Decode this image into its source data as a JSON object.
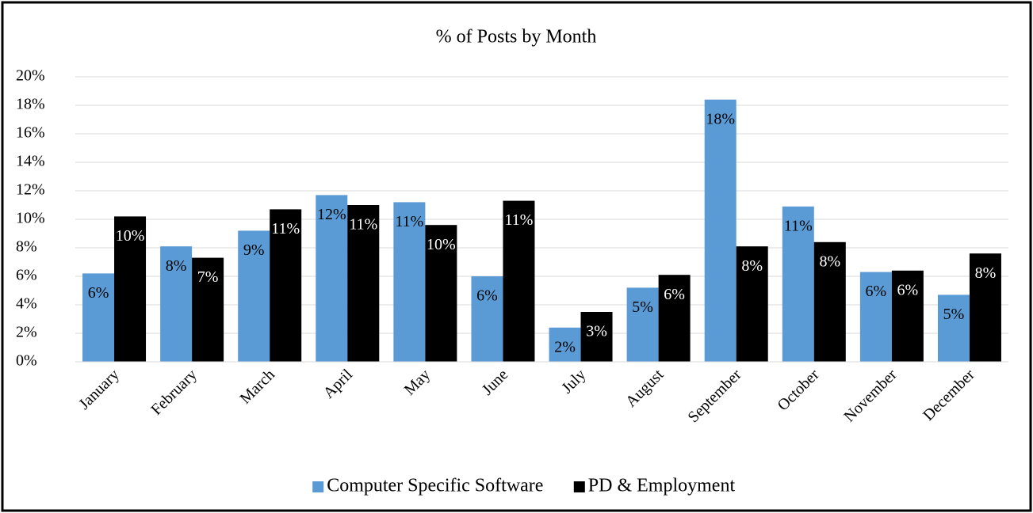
{
  "chart_data": {
    "type": "bar",
    "title": "% of Posts by Month",
    "categories": [
      "January",
      "February",
      "March",
      "April",
      "May",
      "June",
      "July",
      "August",
      "September",
      "October",
      "November",
      "December"
    ],
    "series": [
      {
        "name": "Computer Specific Software",
        "color": "#5b9bd5",
        "values": [
          6.2,
          8.1,
          9.2,
          11.7,
          11.2,
          6.0,
          2.4,
          5.2,
          18.4,
          10.9,
          6.3,
          4.7
        ],
        "value_labels": [
          "6%",
          "8%",
          "9%",
          "12%",
          "11%",
          "6%",
          "2%",
          "5%",
          "18%",
          "11%",
          "6%",
          "5%"
        ]
      },
      {
        "name": "PD & Employment",
        "color": "#000000",
        "values": [
          10.2,
          7.3,
          10.7,
          11.0,
          9.6,
          11.3,
          3.5,
          6.1,
          8.1,
          8.4,
          6.4,
          7.6
        ],
        "value_labels": [
          "10%",
          "7%",
          "11%",
          "11%",
          "10%",
          "11%",
          "3%",
          "6%",
          "8%",
          "8%",
          "6%",
          "8%"
        ]
      }
    ],
    "ylim": [
      0,
      20
    ],
    "yticks": [
      {
        "value": 0,
        "label": "0%"
      },
      {
        "value": 2,
        "label": "2%"
      },
      {
        "value": 4,
        "label": "4%"
      },
      {
        "value": 6,
        "label": "6%"
      },
      {
        "value": 8,
        "label": "8%"
      },
      {
        "value": 10,
        "label": "10%"
      },
      {
        "value": 12,
        "label": "12%"
      },
      {
        "value": 14,
        "label": "14%"
      },
      {
        "value": 16,
        "label": "16%"
      },
      {
        "value": 18,
        "label": "18%"
      },
      {
        "value": 20,
        "label": "20%"
      }
    ],
    "grid": true,
    "legend": "bottom"
  }
}
